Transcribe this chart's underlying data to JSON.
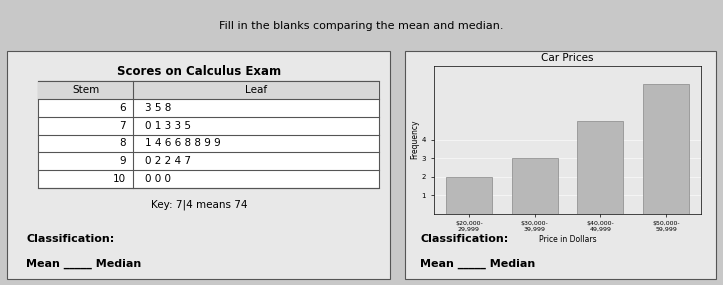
{
  "left_title": "Scores on Calculus Exam",
  "stem_header": "Stem",
  "leaf_header": "Leaf",
  "stem_leaf_data": [
    {
      "stem": "6",
      "leaf": "3 5 8"
    },
    {
      "stem": "7",
      "leaf": "0 1 3 3 5"
    },
    {
      "stem": "8",
      "leaf": "1 4 6 6 8 8 9 9"
    },
    {
      "stem": "9",
      "leaf": "0 2 2 4 7"
    },
    {
      "stem": "10",
      "leaf": "0 0 0"
    }
  ],
  "key_text": "Key: 7|4 means 74",
  "classification_left": "Classification:",
  "mean_median_left": "Mean _____ Median",
  "right_title": "Car Prices",
  "bar_values": [
    2,
    3,
    5,
    7
  ],
  "bar_color": "#b0b0b0",
  "bar_color2": "#c0c0c0",
  "x_labels": [
    "$20,000-29",
    "$30,000-39",
    "$40,000-49",
    "$50,000-5"
  ],
  "y_ticks": [
    1,
    2,
    3,
    4
  ],
  "xlabel_right": "Price in Dollars",
  "ylabel_right": "Frequency",
  "classification_right": "Classification:",
  "mean_median_right": "Mean _____ Median",
  "header_text": "Fill in the blanks comparing the mean and median.",
  "bg_color": "#d8d8d8",
  "panel_bg": "#e8e8e8"
}
